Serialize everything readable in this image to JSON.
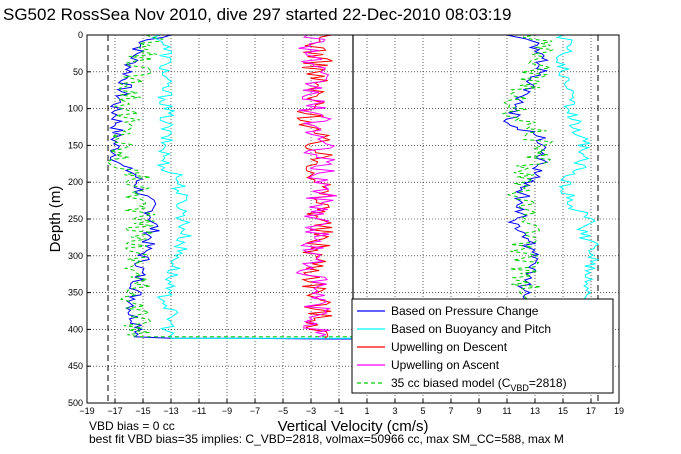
{
  "chart_data": {
    "type": "line",
    "title": "SG502 RossSea Nov 2010, dive 297 started 22-Dec-2010 08:03:19",
    "xlabel": "Vertical Velocity (cm/s)",
    "ylabel": "Depth (m)",
    "xlim": [
      -19,
      19
    ],
    "ylim": [
      0,
      500
    ],
    "y_reversed": true,
    "grid": true,
    "x_ticks": [
      -19,
      -17,
      -15,
      -13,
      -11,
      -9,
      -7,
      -5,
      -3,
      -1,
      1,
      3,
      5,
      7,
      9,
      11,
      13,
      15,
      17,
      19
    ],
    "y_ticks": [
      0,
      50,
      100,
      150,
      200,
      250,
      300,
      350,
      400,
      450,
      500
    ],
    "reference_lines": {
      "color": "#000000",
      "style": "dashed",
      "x": [
        -17.5,
        17.5
      ],
      "depth_bar_x": 0,
      "depth_bar_max": 415
    },
    "legend": {
      "placement": "bottom-right",
      "entries": [
        {
          "label": "Based on Pressure Change",
          "color": "#0000ff",
          "style": "solid"
        },
        {
          "label": "Based on Buoyancy and Pitch",
          "color": "#00ffff",
          "style": "solid"
        },
        {
          "label": "Upwelling on Descent",
          "color": "#ff0000",
          "style": "solid"
        },
        {
          "label": "Upwelling on Ascent",
          "color": "#ff00ff",
          "style": "solid"
        },
        {
          "label_prefix": "35 cc biased model (C",
          "label_sub": "VBD",
          "label_suffix": "=2818)",
          "color": "#00cc00",
          "style": "dashed"
        }
      ]
    },
    "series": [
      {
        "name": "Based on Pressure Change",
        "color": "#0000ff",
        "points": [
          [
            -13,
            0
          ],
          [
            -15,
            10
          ],
          [
            -15.5,
            25
          ],
          [
            -16,
            50
          ],
          [
            -16.5,
            80
          ],
          [
            -17,
            100
          ],
          [
            -16.8,
            120
          ],
          [
            -17,
            145
          ],
          [
            -16.8,
            175
          ],
          [
            -15.5,
            190
          ],
          [
            -15.3,
            210
          ],
          [
            -14.5,
            230
          ],
          [
            -14.2,
            260
          ],
          [
            -14.8,
            290
          ],
          [
            -15.2,
            320
          ],
          [
            -15.5,
            350
          ],
          [
            -15.8,
            380
          ],
          [
            -15,
            400
          ],
          [
            -15.5,
            410
          ],
          [
            -13,
            412
          ],
          [
            -8,
            412
          ],
          [
            -2,
            413
          ],
          [
            -0.5,
            413
          ],
          [
            1,
            413
          ],
          [
            12.5,
            412
          ],
          [
            12.8,
            400
          ],
          [
            12.5,
            370
          ],
          [
            12.2,
            350
          ],
          [
            12.3,
            330
          ],
          [
            12.8,
            310
          ],
          [
            12.5,
            280
          ],
          [
            11.5,
            260
          ],
          [
            12,
            240
          ],
          [
            12.2,
            210
          ],
          [
            13,
            190
          ],
          [
            13.5,
            170
          ],
          [
            13.8,
            150
          ],
          [
            13.5,
            140
          ],
          [
            11.2,
            120
          ],
          [
            11.8,
            100
          ],
          [
            12,
            80
          ],
          [
            13,
            60
          ],
          [
            13.5,
            40
          ],
          [
            13.2,
            20
          ],
          [
            12.5,
            5
          ],
          [
            11,
            0
          ]
        ]
      },
      {
        "name": "Based on Buoyancy and Pitch",
        "color": "#00ffff",
        "points": [
          [
            -14,
            0
          ],
          [
            -13.5,
            10
          ],
          [
            -13.3,
            25
          ],
          [
            -13.5,
            60
          ],
          [
            -13.3,
            100
          ],
          [
            -13.4,
            140
          ],
          [
            -13.5,
            180
          ],
          [
            -12.5,
            190
          ],
          [
            -12.2,
            230
          ],
          [
            -12,
            270
          ],
          [
            -12.8,
            320
          ],
          [
            -13.5,
            350
          ],
          [
            -13,
            380
          ],
          [
            -13.2,
            405
          ],
          [
            -13,
            412
          ],
          [
            15,
            412
          ],
          [
            15.2,
            380
          ],
          [
            16.8,
            350
          ],
          [
            17,
            320
          ],
          [
            17.2,
            290
          ],
          [
            16.5,
            270
          ],
          [
            16.8,
            250
          ],
          [
            15.5,
            230
          ],
          [
            15,
            200
          ],
          [
            16.2,
            180
          ],
          [
            16.5,
            150
          ],
          [
            15.8,
            120
          ],
          [
            15.5,
            100
          ],
          [
            15.3,
            70
          ],
          [
            15,
            40
          ],
          [
            15.2,
            10
          ],
          [
            15,
            0
          ]
        ]
      },
      {
        "name": "Upwelling on Descent",
        "color": "#ff0000",
        "points": [
          [
            -2.5,
            0
          ],
          [
            -2.6,
            50
          ],
          [
            -2.8,
            80
          ],
          [
            -3,
            110
          ],
          [
            -2.5,
            160
          ],
          [
            -2.3,
            200
          ],
          [
            -2.2,
            240
          ],
          [
            -2.5,
            280
          ],
          [
            -2.6,
            320
          ],
          [
            -2.5,
            360
          ],
          [
            -2.3,
            400
          ],
          [
            -2.0,
            412
          ]
        ]
      },
      {
        "name": "Upwelling on Ascent",
        "color": "#ff00ff",
        "points": [
          [
            -2.5,
            0
          ],
          [
            -3.0,
            30
          ],
          [
            -2.8,
            60
          ],
          [
            -3.0,
            90
          ],
          [
            -2.6,
            120
          ],
          [
            -2.4,
            160
          ],
          [
            -2.2,
            200
          ],
          [
            -2.3,
            240
          ],
          [
            -2.8,
            280
          ],
          [
            -3.0,
            320
          ],
          [
            -2.6,
            360
          ],
          [
            -2.5,
            410
          ]
        ]
      },
      {
        "name": "35 cc biased model (CVBD=2818)",
        "color": "#00cc00",
        "points": [
          [
            -14.5,
            0
          ],
          [
            -15,
            20
          ],
          [
            -15.5,
            60
          ],
          [
            -16,
            100
          ],
          [
            -16.5,
            140
          ],
          [
            -16.8,
            175
          ],
          [
            -15.5,
            190
          ],
          [
            -15.2,
            250
          ],
          [
            -15.5,
            320
          ],
          [
            -15.5,
            380
          ],
          [
            -15.3,
            410
          ],
          [
            12.5,
            410
          ],
          [
            12.5,
            360
          ],
          [
            12.2,
            300
          ],
          [
            12.5,
            260
          ],
          [
            11.8,
            220
          ],
          [
            12.2,
            190
          ],
          [
            13.5,
            160
          ],
          [
            13,
            130
          ],
          [
            11.5,
            110
          ],
          [
            11.8,
            80
          ],
          [
            13,
            60
          ],
          [
            13.5,
            20
          ],
          [
            13,
            0
          ]
        ]
      }
    ],
    "annotations": [
      "VBD bias = 0 cc",
      "best fit VBD bias=35 implies: C_VBD=2818, volmax=50966 cc, max SM_CC=588, max M"
    ]
  }
}
